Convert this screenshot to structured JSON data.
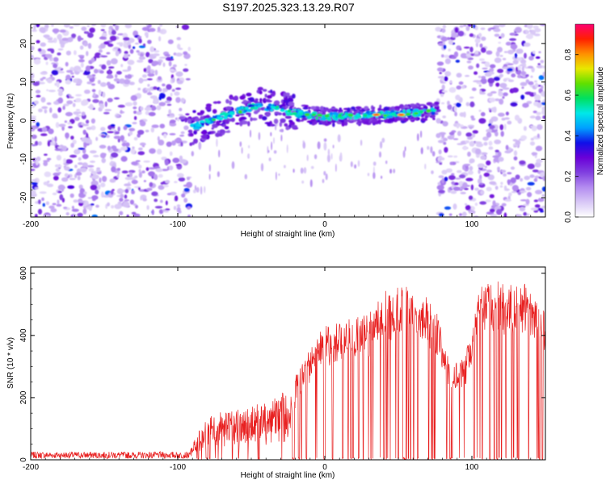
{
  "title": "S197.2025.323.13.29.R07",
  "colors": {
    "snr_line": "#e82020",
    "colormap": [
      "#ffffff",
      "#d8c8f6",
      "#b48cf0",
      "#8040e0",
      "#6a00d8",
      "#1010e8",
      "#00a0ff",
      "#00e8e8",
      "#00e060",
      "#60e000",
      "#e8e800",
      "#ff9000",
      "#ff2000",
      "#ff0070"
    ]
  },
  "chart_data": [
    {
      "type": "heatmap",
      "name": "spectrogram",
      "title": "S197.2025.323.13.29.R07",
      "xlabel": "Height of straight line (km)",
      "ylabel": "Frequency (Hz)",
      "xlim": [
        -200,
        150
      ],
      "ylim": [
        -25,
        25
      ],
      "xticks": [
        -200,
        -100,
        0,
        100
      ],
      "xtick_labels": [
        "-200",
        "-100",
        "0",
        "100"
      ],
      "yticks": [
        20,
        10,
        0,
        -10,
        -20
      ],
      "ytick_labels": [
        "20",
        "10",
        "0",
        "-10",
        "-20"
      ],
      "colorbar": {
        "label": "Normalized spectral amplitude",
        "range": [
          0,
          0.95
        ],
        "ticks": [
          0.0,
          0.2,
          0.4,
          0.6,
          0.8
        ],
        "tick_labels": [
          "0.0",
          "0.2",
          "0.4",
          "0.6",
          "0.8"
        ]
      },
      "features": {
        "noise_regions_km": [
          [
            -200,
            -92
          ],
          [
            77,
            150
          ]
        ],
        "signal_band_km": [
          -92,
          77
        ],
        "signal_center_hz": [
          [
            -92,
            -2
          ],
          [
            -70,
            1
          ],
          [
            -45,
            4
          ],
          [
            -20,
            2
          ],
          [
            0,
            1
          ],
          [
            40,
            1.5
          ],
          [
            77,
            2.5
          ]
        ],
        "peak_amplitude_hz": [
          [
            35,
            1.5
          ],
          [
            52,
            1.5
          ]
        ]
      }
    },
    {
      "type": "line",
      "name": "snr",
      "xlabel": "Height of straight line (km)",
      "ylabel": "SNR (10 * v/v)",
      "xlim": [
        -200,
        150
      ],
      "ylim": [
        0,
        620
      ],
      "xticks": [
        -200,
        -100,
        0,
        100
      ],
      "xtick_labels": [
        "-200",
        "-100",
        "0",
        "100"
      ],
      "yticks": [
        0,
        200,
        400,
        600
      ],
      "ytick_labels": [
        "0",
        "200",
        "400",
        "600"
      ],
      "envelope": [
        {
          "x": -200,
          "y": 25
        },
        {
          "x": -100,
          "y": 25
        },
        {
          "x": -92,
          "y": 30
        },
        {
          "x": -85,
          "y": 110
        },
        {
          "x": -75,
          "y": 150
        },
        {
          "x": -60,
          "y": 160
        },
        {
          "x": -45,
          "y": 180
        },
        {
          "x": -30,
          "y": 210
        },
        {
          "x": -20,
          "y": 270
        },
        {
          "x": -12,
          "y": 340
        },
        {
          "x": -5,
          "y": 400
        },
        {
          "x": 0,
          "y": 430
        },
        {
          "x": 10,
          "y": 440
        },
        {
          "x": 20,
          "y": 460
        },
        {
          "x": 30,
          "y": 470
        },
        {
          "x": 40,
          "y": 540
        },
        {
          "x": 50,
          "y": 560
        },
        {
          "x": 60,
          "y": 560
        },
        {
          "x": 70,
          "y": 520
        },
        {
          "x": 78,
          "y": 460
        },
        {
          "x": 85,
          "y": 300
        },
        {
          "x": 95,
          "y": 330
        },
        {
          "x": 100,
          "y": 420
        },
        {
          "x": 105,
          "y": 550
        },
        {
          "x": 112,
          "y": 600
        },
        {
          "x": 120,
          "y": 570
        },
        {
          "x": 130,
          "y": 580
        },
        {
          "x": 140,
          "y": 560
        },
        {
          "x": 150,
          "y": 490
        }
      ]
    }
  ]
}
